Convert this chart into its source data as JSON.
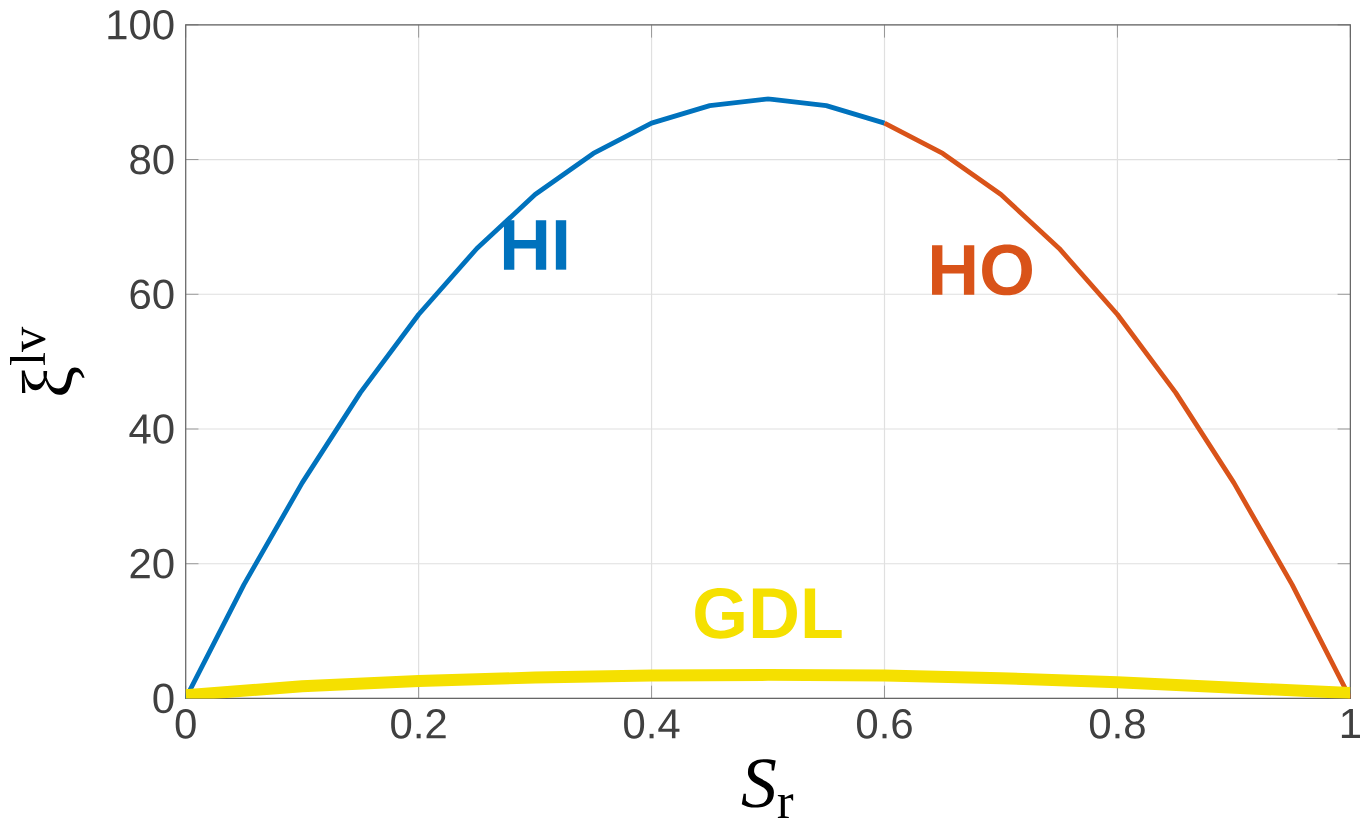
{
  "chart_data": {
    "type": "line",
    "xlabel": "*S*$_{r}$",
    "ylabel": "ξ$^{lv}$",
    "xlim": [
      0,
      1
    ],
    "ylim": [
      0,
      100
    ],
    "xticks": [
      0,
      0.2,
      0.4,
      0.6,
      0.8,
      1
    ],
    "yticks": [
      0,
      20,
      40,
      60,
      80,
      100
    ],
    "grid": true,
    "marker": "none",
    "line_style": "solid",
    "series": [
      {
        "name": "HI",
        "color": "#0072bd",
        "x": [
          0,
          0.05,
          0.1,
          0.15,
          0.2,
          0.25,
          0.3,
          0.35,
          0.4,
          0.45,
          0.5,
          0.55,
          0.6
        ],
        "values": [
          0,
          16.9,
          32,
          45.4,
          57,
          66.8,
          74.8,
          80.9,
          85.4,
          88,
          89,
          88,
          85.4
        ]
      },
      {
        "name": "HO",
        "color": "#d95319",
        "x": [
          0.6,
          0.65,
          0.7,
          0.75,
          0.8,
          0.85,
          0.9,
          0.95,
          1
        ],
        "values": [
          85.4,
          80.9,
          74.8,
          66.8,
          57,
          45.4,
          32,
          16.9,
          0
        ]
      },
      {
        "name": "GDL",
        "color": "#f5e000",
        "x": [
          0,
          0.1,
          0.2,
          0.3,
          0.4,
          0.5,
          0.6,
          0.7,
          0.8,
          0.9,
          1
        ],
        "values": [
          0.5,
          1.8,
          2.6,
          3.1,
          3.4,
          3.5,
          3.4,
          3.0,
          2.4,
          1.6,
          0.8
        ]
      }
    ]
  }
}
